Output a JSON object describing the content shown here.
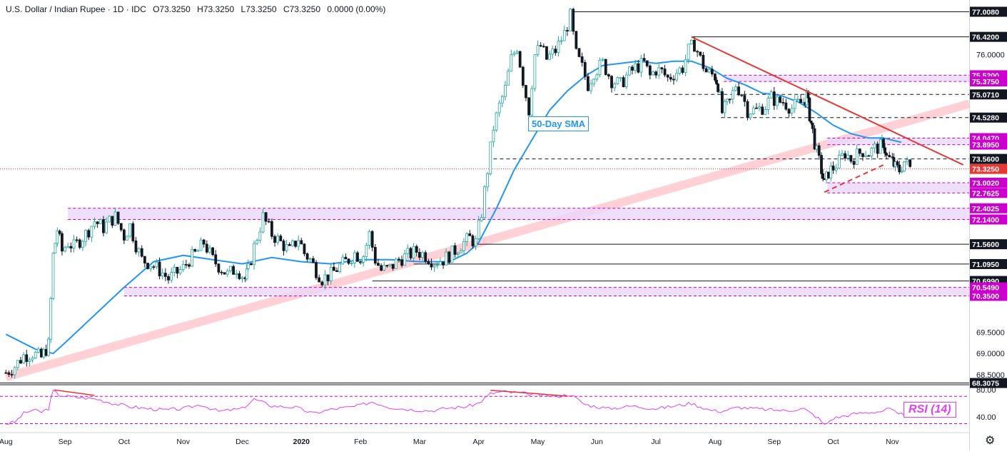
{
  "header": {
    "title": "U.S. Dollar / Indian Rupee · 1D · IDC",
    "open": "O73.3250",
    "high": "H73.3250",
    "low": "L73.3250",
    "close": "C73.3250",
    "change": "0.0000 (0.00%)"
  },
  "annotations": {
    "sma_label": "50-Day SMA",
    "rsi_label": "RSI (14)"
  },
  "colors": {
    "candle_up": "#26a69a",
    "candle_down": "#131722",
    "sma": "#2196f3",
    "resistance_line": "#e53935",
    "support_trend": "#ffcdd2",
    "zone_fill": "#ead7fb",
    "rsi": "#e040fb",
    "label_magenta": "#cc00cc"
  },
  "chart_data": [
    {
      "type": "candlestick",
      "ylim": [
        68.3,
        77.15
      ],
      "x_categories": [
        "Aug",
        "Sep",
        "Oct",
        "Nov",
        "Dec",
        "2020",
        "Feb",
        "Mar",
        "Apr",
        "May",
        "Jun",
        "Jul",
        "Aug",
        "Sep",
        "Oct",
        "Nov"
      ],
      "x_range_months": [
        -0.1,
        16.3
      ],
      "y_ticks": [
        68.5,
        69.0,
        69.5,
        76.0
      ],
      "close_series": [
        [
          0.0,
          68.55
        ],
        [
          0.15,
          68.7
        ],
        [
          0.3,
          68.95
        ],
        [
          0.45,
          69.0
        ],
        [
          0.6,
          68.9
        ],
        [
          0.72,
          69.2
        ],
        [
          0.8,
          71.3
        ],
        [
          0.87,
          71.9
        ],
        [
          0.95,
          71.4
        ],
        [
          1.05,
          71.6
        ],
        [
          1.15,
          71.5
        ],
        [
          1.35,
          71.8
        ],
        [
          1.5,
          72.1
        ],
        [
          1.65,
          71.95
        ],
        [
          1.75,
          72.1
        ],
        [
          1.85,
          72.2
        ],
        [
          2.0,
          71.75
        ],
        [
          2.1,
          72.0
        ],
        [
          2.2,
          71.55
        ],
        [
          2.3,
          71.2
        ],
        [
          2.45,
          71.1
        ],
        [
          2.6,
          70.95
        ],
        [
          2.75,
          70.75
        ],
        [
          2.9,
          70.9
        ],
        [
          3.0,
          71.0
        ],
        [
          3.1,
          71.2
        ],
        [
          3.25,
          71.4
        ],
        [
          3.35,
          71.6
        ],
        [
          3.5,
          71.2
        ],
        [
          3.6,
          71.05
        ],
        [
          3.75,
          70.85
        ],
        [
          3.9,
          71.0
        ],
        [
          4.05,
          70.75
        ],
        [
          4.1,
          70.95
        ],
        [
          4.2,
          71.5
        ],
        [
          4.35,
          72.2
        ],
        [
          4.5,
          71.8
        ],
        [
          4.65,
          71.6
        ],
        [
          4.8,
          71.4
        ],
        [
          4.95,
          71.7
        ],
        [
          5.05,
          71.35
        ],
        [
          5.15,
          71.2
        ],
        [
          5.25,
          70.95
        ],
        [
          5.35,
          70.75
        ],
        [
          5.5,
          70.85
        ],
        [
          5.65,
          71.05
        ],
        [
          5.8,
          71.2
        ],
        [
          5.9,
          71.35
        ],
        [
          6.0,
          71.25
        ],
        [
          6.05,
          71.3
        ],
        [
          6.15,
          71.8
        ],
        [
          6.25,
          71.2
        ],
        [
          6.35,
          70.95
        ],
        [
          6.5,
          71.0
        ],
        [
          6.65,
          71.2
        ],
        [
          6.8,
          71.3
        ],
        [
          6.95,
          71.4
        ],
        [
          7.1,
          71.3
        ],
        [
          7.25,
          71.15
        ],
        [
          7.4,
          71.2
        ],
        [
          7.55,
          71.35
        ],
        [
          7.7,
          71.55
        ],
        [
          7.85,
          71.7
        ],
        [
          7.95,
          71.6
        ],
        [
          8.05,
          72.3
        ],
        [
          8.15,
          73.3
        ],
        [
          8.25,
          74.3
        ],
        [
          8.35,
          74.8
        ],
        [
          8.45,
          75.2
        ],
        [
          8.55,
          75.9
        ],
        [
          8.65,
          76.2
        ],
        [
          8.75,
          75.4
        ],
        [
          8.85,
          74.7
        ],
        [
          8.95,
          76.0
        ],
        [
          9.05,
          76.2
        ],
        [
          9.15,
          75.9
        ],
        [
          9.3,
          76.1
        ],
        [
          9.45,
          76.5
        ],
        [
          9.55,
          76.9
        ],
        [
          9.65,
          76.0
        ],
        [
          9.75,
          75.7
        ],
        [
          9.85,
          75.3
        ],
        [
          9.95,
          75.6
        ],
        [
          10.1,
          75.8
        ],
        [
          10.25,
          75.4
        ],
        [
          10.4,
          75.3
        ],
        [
          10.5,
          75.5
        ],
        [
          10.65,
          75.7
        ],
        [
          10.8,
          75.8
        ],
        [
          10.9,
          75.5
        ],
        [
          11.0,
          75.65
        ],
        [
          11.1,
          75.6
        ],
        [
          11.2,
          75.45
        ],
        [
          11.35,
          75.6
        ],
        [
          11.45,
          75.7
        ],
        [
          11.55,
          76.1
        ],
        [
          11.65,
          76.25
        ],
        [
          11.75,
          75.9
        ],
        [
          11.85,
          75.6
        ],
        [
          12.0,
          75.5
        ],
        [
          12.05,
          75.3
        ],
        [
          12.12,
          74.65
        ],
        [
          12.25,
          74.9
        ],
        [
          12.35,
          75.3
        ],
        [
          12.45,
          75.1
        ],
        [
          12.55,
          74.7
        ],
        [
          12.7,
          74.7
        ],
        [
          12.85,
          74.8
        ],
        [
          12.95,
          75.0
        ],
        [
          13.05,
          74.9
        ],
        [
          13.15,
          74.9
        ],
        [
          13.3,
          74.75
        ],
        [
          13.4,
          74.85
        ],
        [
          13.5,
          74.9
        ],
        [
          13.55,
          75.05
        ],
        [
          13.6,
          74.6
        ],
        [
          13.65,
          74.2
        ],
        [
          13.72,
          73.7
        ],
        [
          13.8,
          73.3
        ],
        [
          13.85,
          72.95
        ],
        [
          13.92,
          73.25
        ],
        [
          14.0,
          73.35
        ],
        [
          14.1,
          73.5
        ],
        [
          14.2,
          73.7
        ],
        [
          14.3,
          73.55
        ],
        [
          14.4,
          73.65
        ],
        [
          14.5,
          73.75
        ],
        [
          14.6,
          73.7
        ],
        [
          14.7,
          73.8
        ],
        [
          14.8,
          73.85
        ],
        [
          14.85,
          73.95
        ],
        [
          14.9,
          73.6
        ],
        [
          15.0,
          73.5
        ],
        [
          15.05,
          73.35
        ],
        [
          15.12,
          73.3
        ],
        [
          15.2,
          73.5
        ],
        [
          15.3,
          73.35
        ]
      ],
      "sma_50": [
        [
          0.0,
          69.45
        ],
        [
          0.5,
          69.1
        ],
        [
          0.8,
          69.0
        ],
        [
          1.0,
          69.25
        ],
        [
          1.5,
          69.9
        ],
        [
          2.0,
          70.55
        ],
        [
          2.5,
          71.15
        ],
        [
          3.0,
          71.3
        ],
        [
          3.5,
          71.2
        ],
        [
          4.0,
          71.1
        ],
        [
          4.5,
          71.25
        ],
        [
          5.0,
          71.15
        ],
        [
          5.5,
          71.1
        ],
        [
          6.0,
          71.2
        ],
        [
          6.5,
          71.2
        ],
        [
          7.0,
          71.15
        ],
        [
          7.5,
          71.15
        ],
        [
          7.8,
          71.35
        ],
        [
          8.0,
          71.6
        ],
        [
          8.3,
          72.4
        ],
        [
          8.6,
          73.3
        ],
        [
          8.9,
          74.0
        ],
        [
          9.2,
          74.7
        ],
        [
          9.5,
          75.15
        ],
        [
          9.8,
          75.5
        ],
        [
          10.1,
          75.75
        ],
        [
          10.4,
          75.8
        ],
        [
          10.7,
          75.85
        ],
        [
          11.0,
          75.8
        ],
        [
          11.3,
          75.85
        ],
        [
          11.6,
          75.85
        ],
        [
          11.9,
          75.7
        ],
        [
          12.2,
          75.45
        ],
        [
          12.5,
          75.3
        ],
        [
          12.8,
          75.1
        ],
        [
          13.1,
          75.05
        ],
        [
          13.4,
          74.9
        ],
        [
          13.7,
          74.65
        ],
        [
          14.0,
          74.35
        ],
        [
          14.3,
          74.15
        ],
        [
          14.6,
          74.05
        ],
        [
          14.85,
          74.05
        ],
        [
          15.15,
          73.95
        ]
      ],
      "horizontal_levels": [
        {
          "value": 77.008,
          "label": "77.0080",
          "style": "solid",
          "label_color": "black",
          "from": 9.58
        },
        {
          "value": 76.42,
          "label": "76.4200",
          "style": "solid",
          "label_color": "black",
          "from": 11.6
        },
        {
          "value": 75.52,
          "label": "75.5200",
          "style": "zone_top",
          "label_color": "magenta",
          "from": 12.15
        },
        {
          "value": 75.375,
          "label": "75.3750",
          "style": "zone_bottom",
          "label_color": "magenta",
          "from": 12.15
        },
        {
          "value": 75.071,
          "label": "75.0710",
          "style": "dashed",
          "label_color": "black",
          "from": 10.3
        },
        {
          "value": 74.528,
          "label": "74.5280",
          "style": "dashed",
          "label_color": "black",
          "from": 12.1
        },
        {
          "value": 74.047,
          "label": "74.0470",
          "style": "zone_top",
          "label_color": "magenta",
          "from": 13.9
        },
        {
          "value": 73.895,
          "label": "73.8950",
          "style": "zone_bottom",
          "label_color": "magenta",
          "from": 13.9
        },
        {
          "value": 73.56,
          "label": "73.5600",
          "style": "dashed",
          "label_color": "black",
          "from": 8.25
        },
        {
          "value": 73.325,
          "label": "73.3250",
          "style": "current",
          "label_color": "red",
          "from": -0.1
        },
        {
          "value": 73.002,
          "label": "73.0020",
          "style": "zone_top",
          "label_color": "magenta",
          "from": 13.9
        },
        {
          "value": 72.7625,
          "label": "72.7625",
          "style": "zone_bottom",
          "label_color": "magenta",
          "from": 13.9
        },
        {
          "value": 72.4025,
          "label": "72.4025",
          "style": "zone_top",
          "label_color": "magenta",
          "from": 1.05
        },
        {
          "value": 72.14,
          "label": "72.1400",
          "style": "zone_bottom",
          "label_color": "magenta",
          "from": 1.05
        },
        {
          "value": 71.56,
          "label": "71.5600",
          "style": "solid",
          "label_color": "black",
          "from": 7.9
        },
        {
          "value": 71.095,
          "label": "71.0950",
          "style": "solid",
          "label_color": "black",
          "from": 6.9
        },
        {
          "value": 70.699,
          "label": "70.6990",
          "style": "solid",
          "label_color": "black",
          "from": 6.2
        },
        {
          "value": 70.549,
          "label": "70.5490",
          "style": "zone_top",
          "label_color": "magenta",
          "from": 2.0
        },
        {
          "value": 70.35,
          "label": "70.3500",
          "style": "zone_bottom",
          "label_color": "magenta",
          "from": 2.0
        },
        {
          "value": 68.3075,
          "label": "68.3075",
          "style": "solid",
          "label_color": "black",
          "from": -0.1
        }
      ],
      "trendlines": [
        {
          "name": "resistance",
          "from": [
            11.6,
            76.42
          ],
          "to": [
            16.2,
            73.42
          ]
        },
        {
          "name": "rising_support",
          "from": [
            0.0,
            68.45
          ],
          "to": [
            16.3,
            74.85
          ]
        },
        {
          "name": "short_support",
          "from": [
            13.85,
            72.78
          ],
          "to": [
            14.9,
            73.45
          ]
        }
      ]
    },
    {
      "type": "line",
      "name": "RSI (14)",
      "ylim": [
        20,
        85
      ],
      "y_ticks": [
        80.0,
        40.0
      ],
      "overbought": 70,
      "oversold": 30,
      "values": [
        [
          0.0,
          30
        ],
        [
          0.15,
          32
        ],
        [
          0.3,
          45
        ],
        [
          0.45,
          50
        ],
        [
          0.6,
          47
        ],
        [
          0.72,
          52
        ],
        [
          0.8,
          78
        ],
        [
          0.9,
          72
        ],
        [
          1.05,
          70
        ],
        [
          1.3,
          68
        ],
        [
          1.55,
          66
        ],
        [
          1.8,
          60
        ],
        [
          2.1,
          55
        ],
        [
          2.4,
          52
        ],
        [
          2.7,
          50
        ],
        [
          3.0,
          52
        ],
        [
          3.3,
          58
        ],
        [
          3.6,
          48
        ],
        [
          4.0,
          52
        ],
        [
          4.2,
          66
        ],
        [
          4.5,
          56
        ],
        [
          4.9,
          54
        ],
        [
          5.2,
          45
        ],
        [
          5.5,
          51
        ],
        [
          5.9,
          55
        ],
        [
          6.2,
          62
        ],
        [
          6.5,
          54
        ],
        [
          6.8,
          51
        ],
        [
          7.2,
          49
        ],
        [
          7.5,
          53
        ],
        [
          7.8,
          55
        ],
        [
          8.0,
          60
        ],
        [
          8.2,
          74
        ],
        [
          8.4,
          77
        ],
        [
          8.7,
          75
        ],
        [
          9.0,
          72
        ],
        [
          9.3,
          70
        ],
        [
          9.55,
          73
        ],
        [
          9.8,
          58
        ],
        [
          10.2,
          52
        ],
        [
          10.6,
          56
        ],
        [
          11.0,
          52
        ],
        [
          11.4,
          57
        ],
        [
          11.6,
          60
        ],
        [
          11.9,
          50
        ],
        [
          12.1,
          48
        ],
        [
          12.4,
          54
        ],
        [
          12.8,
          51
        ],
        [
          13.2,
          49
        ],
        [
          13.5,
          52
        ],
        [
          13.75,
          38
        ],
        [
          13.85,
          28
        ],
        [
          14.0,
          38
        ],
        [
          14.4,
          45
        ],
        [
          14.8,
          48
        ],
        [
          14.95,
          52
        ],
        [
          15.1,
          43
        ],
        [
          15.3,
          45
        ]
      ],
      "divergence_lines": [
        {
          "from": [
            0.82,
            79.5
          ],
          "to": [
            1.5,
            71.5
          ]
        },
        {
          "from": [
            8.2,
            79
          ],
          "to": [
            9.5,
            70.5
          ]
        }
      ]
    }
  ]
}
